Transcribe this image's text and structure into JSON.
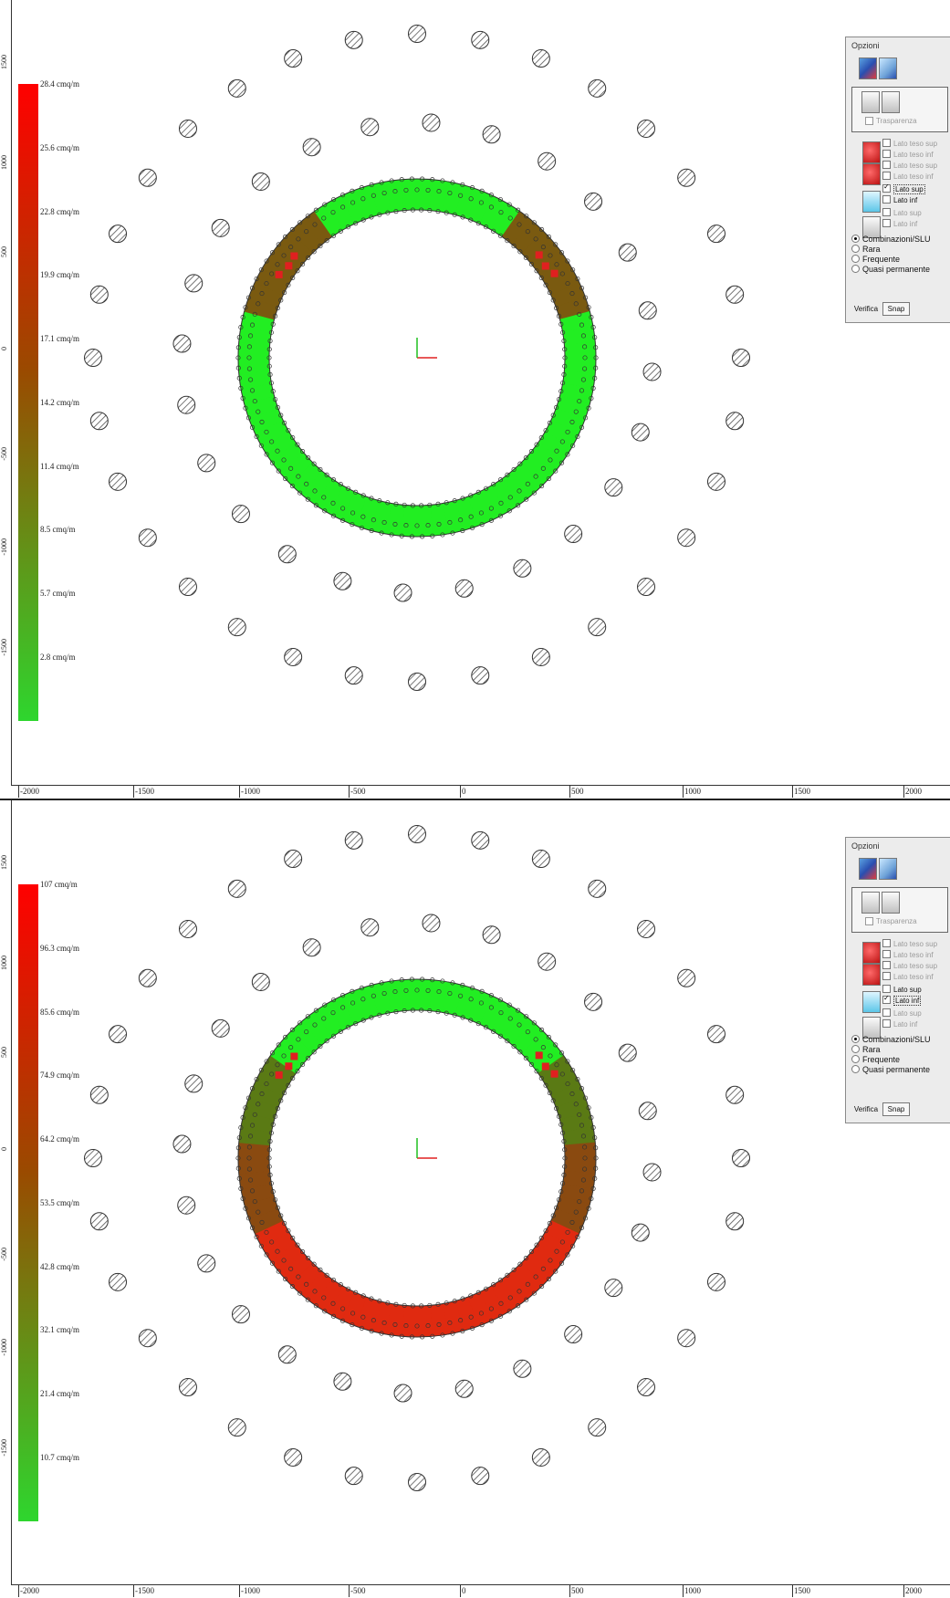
{
  "panels": [
    {
      "legend": {
        "color_top": "#ff0000",
        "color_bottom": "#22ee22",
        "labels": [
          "28.4 cmq/m",
          "25.6 cmq/m",
          "22.8 cmq/m",
          "19.9 cmq/m",
          "17.1 cmq/m",
          "14.2 cmq/m",
          "11.4 cmq/m",
          "8.5 cmq/m",
          "5.7 cmq/m",
          "2.8 cmq/m"
        ]
      },
      "ruler": {
        "x_labels": [
          "-2000",
          "-1500",
          "-1000",
          "-500",
          "0",
          "500",
          "1000",
          "1500",
          "2000"
        ],
        "y_labels": [
          "1500",
          "1000",
          "500",
          "0",
          "-500",
          "-1000",
          "-1500"
        ]
      },
      "options": {
        "title": "Opzioni",
        "trasparenza_label": "Trasparenza",
        "checkboxes": [
          {
            "label": "Lato teso sup",
            "checked": false,
            "enabled": false
          },
          {
            "label": "Lato teso inf",
            "checked": false,
            "enabled": false
          },
          {
            "label": "Lato teso sup",
            "checked": false,
            "enabled": false
          },
          {
            "label": "Lato teso inf",
            "checked": false,
            "enabled": false
          },
          {
            "label": "Lato sup",
            "checked": true,
            "enabled": true
          },
          {
            "label": "Lato inf",
            "checked": false,
            "enabled": true
          },
          {
            "label": "Lato sup",
            "checked": false,
            "enabled": false
          },
          {
            "label": "Lato inf",
            "checked": false,
            "enabled": false
          }
        ],
        "radios": [
          {
            "label": "Combinazioni/SLU",
            "selected": true
          },
          {
            "label": "Rara",
            "selected": false
          },
          {
            "label": "Frequente",
            "selected": false
          },
          {
            "label": "Quasi permanente",
            "selected": false
          }
        ],
        "verifica_label": "Verifica",
        "snap_label": "Snap"
      }
    },
    {
      "legend": {
        "color_top": "#ff0000",
        "color_bottom": "#22ee22",
        "labels": [
          "107 cmq/m",
          "96.3 cmq/m",
          "85.6 cmq/m",
          "74.9 cmq/m",
          "64.2 cmq/m",
          "53.5 cmq/m",
          "42.8 cmq/m",
          "32.1 cmq/m",
          "21.4 cmq/m",
          "10.7 cmq/m"
        ]
      },
      "ruler": {
        "x_labels": [
          "-2000",
          "-1500",
          "-1000",
          "-500",
          "0",
          "500",
          "1000",
          "1500",
          "2000"
        ],
        "y_labels": [
          "1500",
          "1000",
          "500",
          "0",
          "-500",
          "-1000",
          "-1500"
        ]
      },
      "options": {
        "title": "Opzioni",
        "trasparenza_label": "Trasparenza",
        "checkboxes": [
          {
            "label": "Lato teso sup",
            "checked": false,
            "enabled": false
          },
          {
            "label": "Lato teso inf",
            "checked": false,
            "enabled": false
          },
          {
            "label": "Lato teso sup",
            "checked": false,
            "enabled": false
          },
          {
            "label": "Lato teso inf",
            "checked": false,
            "enabled": false
          },
          {
            "label": "Lato sup",
            "checked": false,
            "enabled": true
          },
          {
            "label": "Lato inf",
            "checked": true,
            "enabled": true
          },
          {
            "label": "Lato sup",
            "checked": false,
            "enabled": false
          },
          {
            "label": "Lato inf",
            "checked": false,
            "enabled": false
          }
        ],
        "radios": [
          {
            "label": "Combinazioni/SLU",
            "selected": true
          },
          {
            "label": "Rara",
            "selected": false
          },
          {
            "label": "Frequente",
            "selected": false
          },
          {
            "label": "Quasi permanente",
            "selected": false
          }
        ],
        "verifica_label": "Verifica",
        "snap_label": "Snap"
      }
    }
  ]
}
